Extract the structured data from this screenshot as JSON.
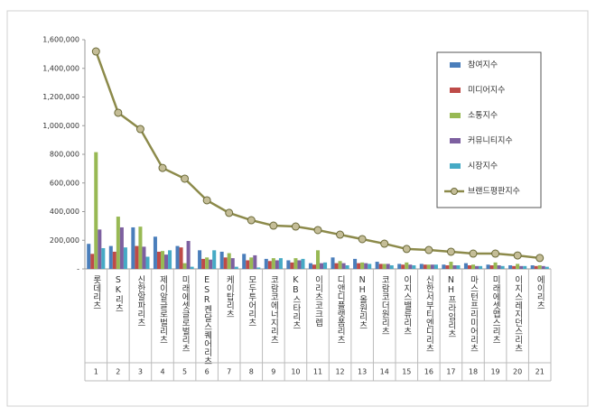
{
  "chart_data": {
    "type": "bar",
    "categories": [
      "롯데리츠",
      "SK리츠",
      "신한알파리츠",
      "제이알글로벌리츠",
      "미래에셋글로벌리츠",
      "ESR켄달스퀘어리츠",
      "케이탑리츠",
      "모두투어리츠",
      "코람코에너지리츠",
      "KB스타리츠",
      "이리츠코크렙",
      "디앤디플랫폼리츠",
      "NH올원리츠",
      "코람코더원리츠",
      "이지스밸류리츠",
      "신한서부티엔디리츠",
      "NH프라임리츠",
      "마스턴프리미어리츠",
      "미래에셋맵스리츠",
      "이지스레지던스리츠",
      "에이리츠"
    ],
    "ranks": [
      "1",
      "2",
      "3",
      "4",
      "5",
      "6",
      "7",
      "8",
      "9",
      "10",
      "11",
      "12",
      "13",
      "14",
      "15",
      "16",
      "17",
      "18",
      "19",
      "20",
      "21"
    ],
    "ylim": [
      0,
      1600000
    ],
    "yticks": [
      {
        "value": 0,
        "label": "-"
      },
      {
        "value": 200000,
        "label": "200,000"
      },
      {
        "value": 400000,
        "label": "400,000"
      },
      {
        "value": 600000,
        "label": "600,000"
      },
      {
        "value": 800000,
        "label": "800,000"
      },
      {
        "value": 1000000,
        "label": "1,000,000"
      },
      {
        "value": 1200000,
        "label": "1,200,000"
      },
      {
        "value": 1400000,
        "label": "1,400,000"
      },
      {
        "value": 1600000,
        "label": "1,600,000"
      }
    ],
    "legend": "upper right",
    "series": [
      {
        "name": "참여지수",
        "color": "#4a7ebb",
        "type": "bar",
        "values": [
          175000,
          160000,
          290000,
          225000,
          160000,
          130000,
          120000,
          105000,
          70000,
          60000,
          40000,
          80000,
          70000,
          50000,
          35000,
          35000,
          30000,
          40000,
          30000,
          25000,
          25000
        ]
      },
      {
        "name": "미디어지수",
        "color": "#be4b48",
        "type": "bar",
        "values": [
          105000,
          120000,
          160000,
          120000,
          150000,
          70000,
          80000,
          60000,
          55000,
          45000,
          30000,
          40000,
          40000,
          35000,
          30000,
          30000,
          25000,
          25000,
          25000,
          20000,
          20000
        ]
      },
      {
        "name": "소통지수",
        "color": "#98b954",
        "type": "bar",
        "values": [
          815000,
          365000,
          295000,
          125000,
          40000,
          80000,
          110000,
          80000,
          75000,
          75000,
          130000,
          55000,
          45000,
          35000,
          45000,
          30000,
          50000,
          30000,
          45000,
          35000,
          25000
        ]
      },
      {
        "name": "커뮤니티지수",
        "color": "#7d60a0",
        "type": "bar",
        "values": [
          275000,
          290000,
          155000,
          100000,
          195000,
          65000,
          75000,
          95000,
          60000,
          60000,
          40000,
          40000,
          40000,
          35000,
          30000,
          30000,
          25000,
          20000,
          25000,
          20000,
          20000
        ]
      },
      {
        "name": "시장지수",
        "color": "#46aac5",
        "type": "bar",
        "values": [
          145000,
          150000,
          85000,
          130000,
          15000,
          130000,
          15000,
          10000,
          75000,
          70000,
          45000,
          25000,
          35000,
          25000,
          25000,
          30000,
          25000,
          20000,
          20000,
          20000,
          15000
        ]
      },
      {
        "name": "브랜드평판지수",
        "color": "#8c8a4a",
        "type": "line",
        "values": [
          1518000,
          1090000,
          976000,
          705000,
          630000,
          479000,
          391000,
          340000,
          302000,
          296000,
          271000,
          239000,
          208000,
          176000,
          139000,
          132000,
          120000,
          107000,
          107000,
          94000,
          76000
        ]
      }
    ]
  }
}
